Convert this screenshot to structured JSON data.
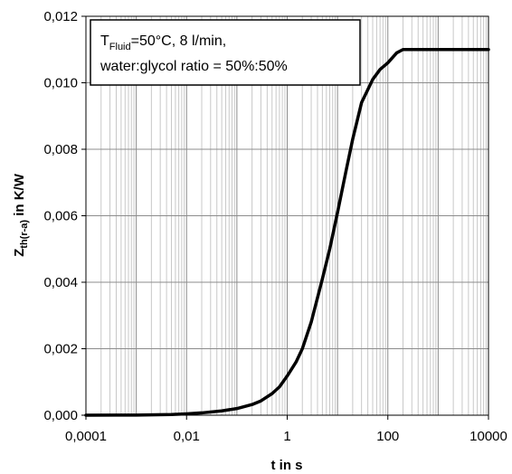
{
  "chart_data": {
    "type": "line",
    "title": "",
    "xlabel": "t in s",
    "ylabel": {
      "main": "Z",
      "sub": "th(r-a)",
      "rest": " in K/W"
    },
    "x_scale": "log",
    "xlim": [
      0.0001,
      10000
    ],
    "ylim": [
      0,
      0.012
    ],
    "grid": true,
    "x_tick_values": [
      0.0001,
      0.01,
      1,
      100,
      10000
    ],
    "x_tick_labels": [
      "0,0001",
      "0,01",
      "1",
      "100",
      "10000"
    ],
    "y_tick_values": [
      0,
      0.002,
      0.004,
      0.006,
      0.008,
      0.01,
      0.012
    ],
    "y_tick_labels": [
      "0,000",
      "0,002",
      "0,004",
      "0,006",
      "0,008",
      "0,010",
      "0,012"
    ],
    "annotation": {
      "line1_prefix": "T",
      "line1_sub": "Fluid",
      "line1_rest": "=50°C, 8 l/min,",
      "line2": "water:glycol ratio = 50%:50%"
    },
    "series": [
      {
        "color": "#000000",
        "x": [
          0.0001,
          0.001,
          0.005,
          0.01,
          0.02,
          0.05,
          0.1,
          0.2,
          0.3,
          0.5,
          0.7,
          1,
          1.5,
          2,
          3,
          5,
          7,
          10,
          15,
          20,
          30,
          50,
          70,
          100,
          150,
          200,
          300,
          500,
          1000,
          3000,
          10000
        ],
        "y": [
          0,
          5e-06,
          2e-05,
          4e-05,
          7e-05,
          0.00013,
          0.0002,
          0.00032,
          0.00043,
          0.00065,
          0.00085,
          0.00118,
          0.0016,
          0.002,
          0.0028,
          0.0041,
          0.005,
          0.0061,
          0.0074,
          0.0083,
          0.0094,
          0.0101,
          0.0104,
          0.0106,
          0.0109,
          0.011,
          0.011,
          0.011,
          0.011,
          0.011,
          0.011
        ]
      }
    ]
  }
}
